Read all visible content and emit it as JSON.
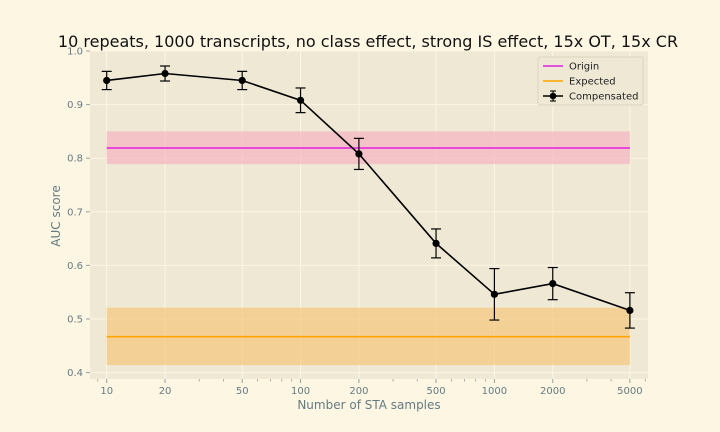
{
  "chart_data": {
    "type": "line",
    "title": "10 repeats, 1000 transcripts, no class effect, strong IS effect, 15x OT, 15x CR",
    "xlabel": "Number of STA samples",
    "ylabel": "AUC score",
    "x_scale": "log",
    "xlim": [
      8.2,
      6200
    ],
    "ylim": [
      0.388,
      1.0
    ],
    "x_ticks": [
      10,
      20,
      50,
      100,
      200,
      500,
      1000,
      2000,
      5000
    ],
    "x_tick_labels": [
      "10",
      "20",
      "50",
      "100",
      "200",
      "500",
      "1000",
      "2000",
      "5000"
    ],
    "y_ticks": [
      0.4,
      0.5,
      0.6,
      0.7,
      0.8,
      0.9,
      1.0
    ],
    "y_tick_labels": [
      "0.4",
      "0.5",
      "0.6",
      "0.7",
      "0.8",
      "0.9",
      "1.0"
    ],
    "grid": true,
    "legend_position": "top-right",
    "series": [
      {
        "name": "Origin",
        "kind": "band",
        "color": "#e020e0",
        "band_color": "#f7b3c0",
        "x_range": [
          10,
          5000
        ],
        "value": 0.819,
        "band": [
          0.789,
          0.85
        ]
      },
      {
        "name": "Expected",
        "kind": "band",
        "color": "#ffa500",
        "band_color": "#f5c77a",
        "x_range": [
          10,
          5000
        ],
        "value": 0.467,
        "band": [
          0.414,
          0.521
        ]
      },
      {
        "name": "Compensated",
        "kind": "errorbar",
        "color": "#000000",
        "x": [
          10,
          20,
          50,
          100,
          200,
          500,
          1000,
          2000,
          5000
        ],
        "y": [
          0.945,
          0.958,
          0.945,
          0.908,
          0.808,
          0.641,
          0.546,
          0.566,
          0.516
        ],
        "yerr": [
          0.017,
          0.014,
          0.017,
          0.023,
          0.029,
          0.027,
          0.048,
          0.03,
          0.033
        ]
      }
    ]
  }
}
